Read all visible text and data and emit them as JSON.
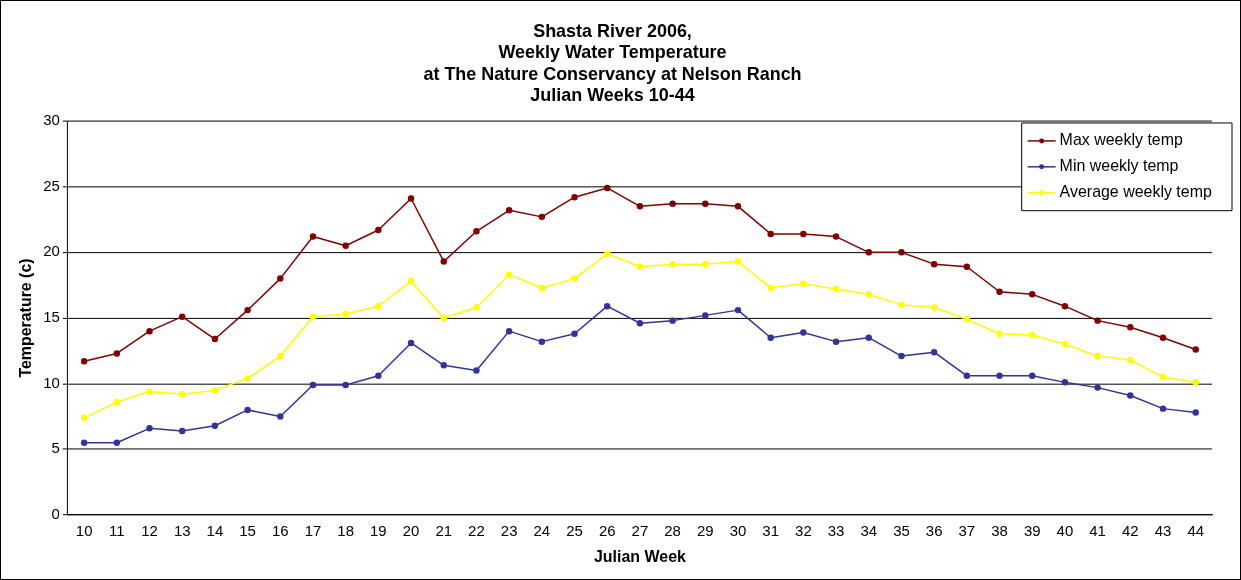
{
  "chart_data": {
    "type": "line",
    "title": "Shasta River 2006,\nWeekly Water Temperature\nat The Nature Conservancy at Nelson Ranch\nJulian Weeks 10-44",
    "xlabel": "Julian Week",
    "ylabel": "Temperature (c)",
    "categories": [
      "10",
      "11",
      "12",
      "13",
      "14",
      "15",
      "16",
      "17",
      "18",
      "19",
      "20",
      "21",
      "22",
      "23",
      "24",
      "25",
      "26",
      "27",
      "28",
      "29",
      "30",
      "31",
      "32",
      "33",
      "34",
      "35",
      "36",
      "37",
      "38",
      "39",
      "40",
      "41",
      "42",
      "43",
      "44"
    ],
    "series": [
      {
        "name": "Max weekly temp",
        "color": "#800000",
        "values": [
          11.7,
          12.3,
          14.0,
          15.1,
          13.4,
          15.6,
          18.0,
          21.2,
          20.5,
          21.7,
          24.1,
          19.3,
          21.6,
          23.2,
          22.7,
          24.2,
          24.9,
          23.5,
          23.7,
          23.7,
          23.5,
          21.4,
          21.4,
          21.2,
          20.0,
          20.0,
          19.1,
          18.9,
          17.0,
          16.8,
          15.9,
          14.8,
          14.3,
          13.5,
          12.6
        ]
      },
      {
        "name": "Min weekly temp",
        "color": "#333399",
        "values": [
          5.5,
          5.5,
          6.6,
          6.4,
          6.8,
          8.0,
          7.5,
          9.9,
          9.9,
          10.6,
          13.1,
          11.4,
          11.0,
          14.0,
          13.2,
          13.8,
          15.9,
          14.6,
          14.8,
          15.2,
          15.6,
          13.5,
          13.9,
          13.2,
          13.5,
          12.1,
          12.4,
          10.6,
          10.6,
          10.6,
          10.1,
          9.7,
          9.1,
          8.1,
          7.8
        ]
      },
      {
        "name": "Average weekly temp",
        "color": "#ffff00",
        "values": [
          7.4,
          8.6,
          9.4,
          9.2,
          9.5,
          10.4,
          12.1,
          15.1,
          15.3,
          15.9,
          17.8,
          15.0,
          15.8,
          18.3,
          17.3,
          18.0,
          19.9,
          18.9,
          19.1,
          19.1,
          19.3,
          17.3,
          17.6,
          17.2,
          16.8,
          16.0,
          15.8,
          14.9,
          13.8,
          13.7,
          13.0,
          12.1,
          11.8,
          10.5,
          10.1
        ]
      }
    ],
    "ylim": [
      0,
      30
    ],
    "yticks": [
      0,
      5,
      10,
      15,
      20,
      25,
      30
    ],
    "grid": "y",
    "legend": "top right",
    "marker": "circle",
    "line_style": "solid"
  }
}
